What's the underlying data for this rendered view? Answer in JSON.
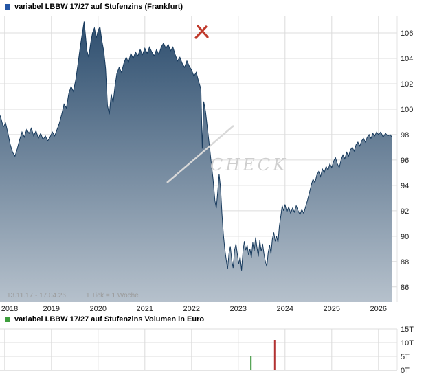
{
  "price_panel": {
    "title": "variabel LBBW 17/27 auf Stufenzins (Frankfurt)",
    "legend_color": "#2456a5",
    "range_label": "13.11.17 - 17.04.26",
    "tick_label": "1 Tick = 1 Woche",
    "watermark_text": "CHECK"
  },
  "volume_panel": {
    "title": "variabel LBBW 17/27 auf Stufenzins Volumen in Euro",
    "legend_color": "#3d9e3c"
  },
  "chart_data": [
    {
      "type": "area",
      "title": "variabel LBBW 17/27 auf Stufenzins (Frankfurt)",
      "xlabel": "",
      "ylabel": "",
      "x_unit": "year (1 tick = 1 week)",
      "xlim": [
        2017.9,
        2026.4
      ],
      "ylim": [
        84.8,
        107.3
      ],
      "x_ticks": [
        2018,
        2019,
        2020,
        2021,
        2022,
        2023,
        2024,
        2025,
        2026
      ],
      "y_ticks": [
        86,
        88,
        90,
        92,
        94,
        96,
        98,
        100,
        102,
        104,
        106
      ],
      "grid": true,
      "legend_position": "top-left",
      "line_color": "#16395c",
      "fill_gradient": [
        "#2b4c6d",
        "#b6c1cc"
      ],
      "points": [
        [
          2017.87,
          99.8
        ],
        [
          2017.92,
          99.3
        ],
        [
          2017.97,
          98.6
        ],
        [
          2018.02,
          98.9
        ],
        [
          2018.07,
          98.1
        ],
        [
          2018.12,
          97.2
        ],
        [
          2018.17,
          96.6
        ],
        [
          2018.22,
          96.3
        ],
        [
          2018.27,
          96.9
        ],
        [
          2018.32,
          97.6
        ],
        [
          2018.37,
          98.2
        ],
        [
          2018.42,
          97.8
        ],
        [
          2018.47,
          98.4
        ],
        [
          2018.52,
          98.1
        ],
        [
          2018.57,
          98.5
        ],
        [
          2018.62,
          97.9
        ],
        [
          2018.67,
          98.3
        ],
        [
          2018.72,
          97.7
        ],
        [
          2018.77,
          98.1
        ],
        [
          2018.82,
          97.6
        ],
        [
          2018.87,
          97.9
        ],
        [
          2018.92,
          97.5
        ],
        [
          2018.97,
          97.8
        ],
        [
          2019.02,
          98.2
        ],
        [
          2019.07,
          97.9
        ],
        [
          2019.12,
          98.4
        ],
        [
          2019.17,
          98.9
        ],
        [
          2019.22,
          99.6
        ],
        [
          2019.27,
          100.4
        ],
        [
          2019.32,
          100.1
        ],
        [
          2019.37,
          101.2
        ],
        [
          2019.42,
          101.8
        ],
        [
          2019.47,
          101.4
        ],
        [
          2019.52,
          102.3
        ],
        [
          2019.57,
          103.6
        ],
        [
          2019.62,
          105.0
        ],
        [
          2019.67,
          106.2
        ],
        [
          2019.7,
          106.9
        ],
        [
          2019.73,
          105.8
        ],
        [
          2019.76,
          104.6
        ],
        [
          2019.8,
          104.1
        ],
        [
          2019.84,
          105.2
        ],
        [
          2019.88,
          106.0
        ],
        [
          2019.92,
          106.4
        ],
        [
          2019.96,
          105.6
        ],
        [
          2020.0,
          106.2
        ],
        [
          2020.04,
          106.5
        ],
        [
          2020.08,
          105.4
        ],
        [
          2020.12,
          104.6
        ],
        [
          2020.16,
          103.2
        ],
        [
          2020.2,
          100.3
        ],
        [
          2020.24,
          99.6
        ],
        [
          2020.28,
          101.2
        ],
        [
          2020.32,
          100.5
        ],
        [
          2020.36,
          101.8
        ],
        [
          2020.4,
          102.8
        ],
        [
          2020.45,
          103.3
        ],
        [
          2020.5,
          102.9
        ],
        [
          2020.55,
          103.6
        ],
        [
          2020.6,
          104.1
        ],
        [
          2020.65,
          103.7
        ],
        [
          2020.7,
          104.4
        ],
        [
          2020.75,
          104.0
        ],
        [
          2020.8,
          104.5
        ],
        [
          2020.85,
          104.2
        ],
        [
          2020.9,
          104.7
        ],
        [
          2020.95,
          104.3
        ],
        [
          2021.0,
          104.8
        ],
        [
          2021.05,
          104.4
        ],
        [
          2021.1,
          104.9
        ],
        [
          2021.15,
          104.5
        ],
        [
          2021.2,
          104.2
        ],
        [
          2021.25,
          104.7
        ],
        [
          2021.3,
          104.3
        ],
        [
          2021.35,
          104.9
        ],
        [
          2021.4,
          105.2
        ],
        [
          2021.45,
          104.8
        ],
        [
          2021.5,
          105.1
        ],
        [
          2021.55,
          104.6
        ],
        [
          2021.6,
          104.9
        ],
        [
          2021.65,
          104.3
        ],
        [
          2021.7,
          103.8
        ],
        [
          2021.75,
          104.1
        ],
        [
          2021.8,
          103.6
        ],
        [
          2021.85,
          103.3
        ],
        [
          2021.9,
          103.8
        ],
        [
          2021.95,
          103.4
        ],
        [
          2022.0,
          103.1
        ],
        [
          2022.05,
          102.6
        ],
        [
          2022.1,
          102.9
        ],
        [
          2022.15,
          102.2
        ],
        [
          2022.2,
          101.6
        ],
        [
          2022.23,
          96.9
        ],
        [
          2022.26,
          100.6
        ],
        [
          2022.3,
          99.8
        ],
        [
          2022.34,
          98.5
        ],
        [
          2022.38,
          97.2
        ],
        [
          2022.42,
          95.8
        ],
        [
          2022.46,
          94.5
        ],
        [
          2022.5,
          92.8
        ],
        [
          2022.53,
          92.2
        ],
        [
          2022.56,
          93.5
        ],
        [
          2022.59,
          94.9
        ],
        [
          2022.62,
          93.8
        ],
        [
          2022.65,
          91.8
        ],
        [
          2022.68,
          90.2
        ],
        [
          2022.71,
          89.0
        ],
        [
          2022.74,
          88.2
        ],
        [
          2022.77,
          87.4
        ],
        [
          2022.8,
          88.6
        ],
        [
          2022.83,
          89.2
        ],
        [
          2022.86,
          88.1
        ],
        [
          2022.89,
          87.5
        ],
        [
          2022.92,
          88.9
        ],
        [
          2022.95,
          89.4
        ],
        [
          2022.98,
          88.6
        ],
        [
          2023.01,
          87.8
        ],
        [
          2023.04,
          88.4
        ],
        [
          2023.07,
          87.3
        ],
        [
          2023.1,
          88.8
        ],
        [
          2023.13,
          89.6
        ],
        [
          2023.16,
          88.9
        ],
        [
          2023.19,
          89.3
        ],
        [
          2023.22,
          88.5
        ],
        [
          2023.25,
          89.0
        ],
        [
          2023.28,
          88.3
        ],
        [
          2023.31,
          89.5
        ],
        [
          2023.34,
          88.8
        ],
        [
          2023.37,
          89.9
        ],
        [
          2023.4,
          89.1
        ],
        [
          2023.43,
          88.4
        ],
        [
          2023.46,
          89.7
        ],
        [
          2023.49,
          88.8
        ],
        [
          2023.52,
          89.4
        ],
        [
          2023.55,
          88.6
        ],
        [
          2023.58,
          88.0
        ],
        [
          2023.61,
          87.6
        ],
        [
          2023.64,
          88.7
        ],
        [
          2023.67,
          89.3
        ],
        [
          2023.7,
          88.6
        ],
        [
          2023.73,
          89.8
        ],
        [
          2023.76,
          90.3
        ],
        [
          2023.79,
          89.6
        ],
        [
          2023.82,
          90.0
        ],
        [
          2023.85,
          89.5
        ],
        [
          2023.88,
          90.8
        ],
        [
          2023.91,
          91.6
        ],
        [
          2023.94,
          92.4
        ],
        [
          2023.97,
          92.0
        ],
        [
          2024.0,
          92.5
        ],
        [
          2024.04,
          91.9
        ],
        [
          2024.08,
          92.3
        ],
        [
          2024.12,
          91.8
        ],
        [
          2024.16,
          92.2
        ],
        [
          2024.2,
          91.9
        ],
        [
          2024.24,
          92.4
        ],
        [
          2024.28,
          92.0
        ],
        [
          2024.32,
          91.7
        ],
        [
          2024.36,
          92.1
        ],
        [
          2024.4,
          91.8
        ],
        [
          2024.44,
          92.3
        ],
        [
          2024.48,
          92.8
        ],
        [
          2024.52,
          93.4
        ],
        [
          2024.56,
          94.0
        ],
        [
          2024.6,
          94.5
        ],
        [
          2024.64,
          94.2
        ],
        [
          2024.68,
          94.8
        ],
        [
          2024.72,
          95.1
        ],
        [
          2024.76,
          94.7
        ],
        [
          2024.8,
          95.3
        ],
        [
          2024.84,
          95.0
        ],
        [
          2024.88,
          95.5
        ],
        [
          2024.92,
          95.2
        ],
        [
          2024.96,
          95.7
        ],
        [
          2025.0,
          95.4
        ],
        [
          2025.04,
          95.9
        ],
        [
          2025.08,
          96.2
        ],
        [
          2025.12,
          95.7
        ],
        [
          2025.16,
          95.4
        ],
        [
          2025.2,
          96.0
        ],
        [
          2025.24,
          96.4
        ],
        [
          2025.28,
          96.1
        ],
        [
          2025.32,
          96.6
        ],
        [
          2025.36,
          96.3
        ],
        [
          2025.4,
          96.8
        ],
        [
          2025.44,
          97.0
        ],
        [
          2025.48,
          96.7
        ],
        [
          2025.52,
          97.2
        ],
        [
          2025.56,
          97.4
        ],
        [
          2025.6,
          97.1
        ],
        [
          2025.64,
          97.5
        ],
        [
          2025.68,
          97.7
        ],
        [
          2025.72,
          97.4
        ],
        [
          2025.76,
          97.8
        ],
        [
          2025.8,
          98.0
        ],
        [
          2025.84,
          97.7
        ],
        [
          2025.88,
          98.1
        ],
        [
          2025.92,
          97.9
        ],
        [
          2025.96,
          98.2
        ],
        [
          2026.0,
          98.0
        ],
        [
          2026.05,
          98.2
        ],
        [
          2026.1,
          97.8
        ],
        [
          2026.15,
          98.1
        ],
        [
          2026.2,
          97.9
        ],
        [
          2026.25,
          98.0
        ],
        [
          2026.29,
          97.8
        ]
      ],
      "annotations": [
        "13.11.17 - 17.04.26",
        "1 Tick = 1 Woche"
      ]
    },
    {
      "type": "bar",
      "title": "variabel LBBW 17/27 auf Stufenzins Volumen in Euro",
      "xlabel": "",
      "ylabel": "Volumen in Euro",
      "xlim": [
        2017.9,
        2026.4
      ],
      "ylim": [
        0,
        15000
      ],
      "x_ticks": [
        2018,
        2019,
        2020,
        2021,
        2022,
        2023,
        2024,
        2025,
        2026
      ],
      "y_ticks": [
        {
          "label": "15T",
          "value": 15000
        },
        {
          "label": "10T",
          "value": 10000
        },
        {
          "label": "5T",
          "value": 5000
        },
        {
          "label": "0T",
          "value": 0
        }
      ],
      "grid": true,
      "bars": [
        {
          "x": 2023.27,
          "value": 5000,
          "color": "#2f8f2f"
        },
        {
          "x": 2023.78,
          "value": 11000,
          "color": "#b23232"
        }
      ]
    }
  ]
}
